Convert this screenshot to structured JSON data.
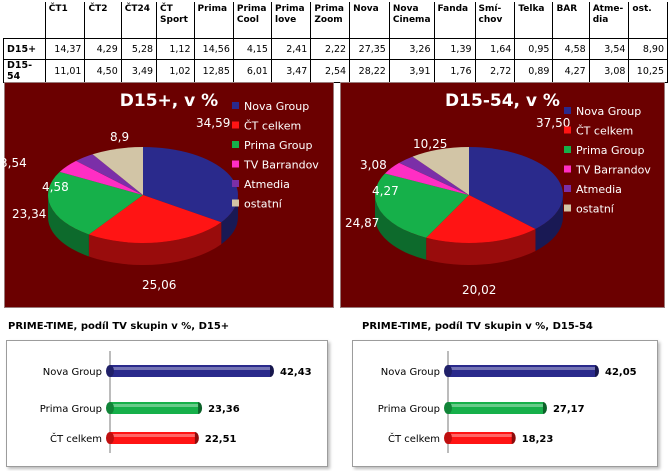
{
  "table": {
    "headers": [
      "ČT1",
      "ČT2",
      "ČT24",
      "ČT Sport",
      "Prima",
      "Prima Cool",
      "Prima love",
      "Prima Zoom",
      "Nova",
      "Nova Cinema",
      "Fanda",
      "Smí-chov",
      "Telka",
      "BAR",
      "Atme-dia",
      "ost."
    ],
    "rows": [
      {
        "label": "D15+",
        "values": [
          "14,37",
          "4,29",
          "5,28",
          "1,12",
          "14,56",
          "4,15",
          "2,41",
          "2,22",
          "27,35",
          "3,26",
          "1,39",
          "1,64",
          "0,95",
          "4,58",
          "3,54",
          "8,90"
        ]
      },
      {
        "label": "D15-54",
        "values": [
          "11,01",
          "4,50",
          "3,49",
          "1,02",
          "12,85",
          "6,01",
          "3,47",
          "2,54",
          "28,22",
          "3,91",
          "1,76",
          "2,72",
          "0,89",
          "4,27",
          "3,08",
          "10,25"
        ]
      }
    ]
  },
  "chart_data": [
    {
      "type": "pie",
      "title": "D15+, v %",
      "slices": [
        {
          "label": "Nova Group",
          "value": 34.59,
          "text": "34,59",
          "color": "#2a2a8c"
        },
        {
          "label": "ČT celkem",
          "value": 25.06,
          "text": "25,06",
          "color": "#ff1414"
        },
        {
          "label": "Prima Group",
          "value": 23.34,
          "text": "23,34",
          "color": "#16b04a"
        },
        {
          "label": "TV Barrandov",
          "value": 4.58,
          "text": "4,58",
          "color": "#ff2ec4"
        },
        {
          "label": "Atmedia",
          "value": 3.54,
          "text": "3,54",
          "color": "#7b2fa8"
        },
        {
          "label": "ostatní",
          "value": 8.9,
          "text": "8,9",
          "color": "#d2c5a6"
        }
      ]
    },
    {
      "type": "pie",
      "title": "D15-54, v %",
      "slices": [
        {
          "label": "Nova Group",
          "value": 37.5,
          "text": "37,50",
          "color": "#2a2a8c"
        },
        {
          "label": "ČT celkem",
          "value": 20.02,
          "text": "20,02",
          "color": "#ff1414"
        },
        {
          "label": "Prima Group",
          "value": 24.87,
          "text": "24,87",
          "color": "#16b04a"
        },
        {
          "label": "TV Barrandov",
          "value": 4.27,
          "text": "4,27",
          "color": "#ff2ec4"
        },
        {
          "label": "Atmedia",
          "value": 3.08,
          "text": "3,08",
          "color": "#7b2fa8"
        },
        {
          "label": "ostatní",
          "value": 10.25,
          "text": "10,25",
          "color": "#d2c5a6"
        }
      ]
    },
    {
      "type": "bar",
      "orientation": "horizontal",
      "title": "PRIME-TIME, podíl TV skupin v %, D15+",
      "categories": [
        "Nova Group",
        "Prima Group",
        "ČT celkem"
      ],
      "values": [
        42.43,
        23.36,
        22.51
      ],
      "value_labels": [
        "42,43",
        "23,36",
        "22,51"
      ],
      "colors": [
        "#2a2a8c",
        "#16b04a",
        "#ff1414"
      ],
      "xlim": [
        0,
        50
      ]
    },
    {
      "type": "bar",
      "orientation": "horizontal",
      "title": "PRIME-TIME, podíl TV skupin v %, D15-54",
      "categories": [
        "Nova Group",
        "Prima Group",
        "ČT celkem"
      ],
      "values": [
        42.05,
        27.17,
        18.23
      ],
      "value_labels": [
        "42,05",
        "27,17",
        "18,23"
      ],
      "colors": [
        "#2a2a8c",
        "#16b04a",
        "#ff1414"
      ],
      "xlim": [
        0,
        50
      ]
    }
  ]
}
